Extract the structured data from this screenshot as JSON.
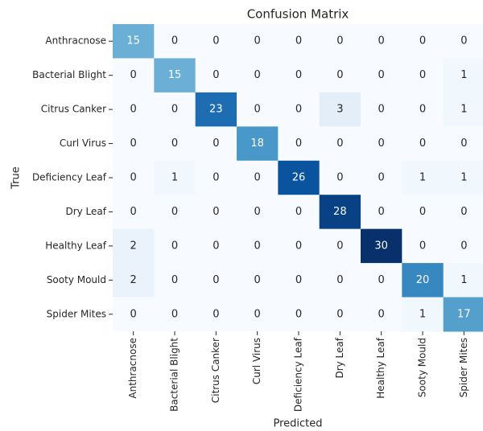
{
  "chart_data": {
    "type": "heatmap",
    "title": "Confusion Matrix",
    "xlabel": "Predicted",
    "ylabel": "True",
    "colormap": "Blues",
    "x_categories": [
      "Anthracnose",
      "Bacterial Blight",
      "Citrus Canker",
      "Curl Virus",
      "Deficiency Leaf",
      "Dry Leaf",
      "Healthy Leaf",
      "Sooty Mould",
      "Spider Mites"
    ],
    "y_categories": [
      "Anthracnose",
      "Bacterial Blight",
      "Citrus Canker",
      "Curl Virus",
      "Deficiency Leaf",
      "Dry Leaf",
      "Healthy Leaf",
      "Sooty Mould",
      "Spider Mites"
    ],
    "values": [
      [
        15,
        0,
        0,
        0,
        0,
        0,
        0,
        0,
        0
      ],
      [
        0,
        15,
        0,
        0,
        0,
        0,
        0,
        0,
        1
      ],
      [
        0,
        0,
        23,
        0,
        0,
        3,
        0,
        0,
        1
      ],
      [
        0,
        0,
        0,
        18,
        0,
        0,
        0,
        0,
        0
      ],
      [
        0,
        1,
        0,
        0,
        26,
        0,
        0,
        1,
        1
      ],
      [
        0,
        0,
        0,
        0,
        0,
        28,
        0,
        0,
        0
      ],
      [
        2,
        0,
        0,
        0,
        0,
        0,
        30,
        0,
        0
      ],
      [
        2,
        0,
        0,
        0,
        0,
        0,
        0,
        20,
        1
      ],
      [
        0,
        0,
        0,
        0,
        0,
        0,
        0,
        1,
        17
      ]
    ]
  }
}
